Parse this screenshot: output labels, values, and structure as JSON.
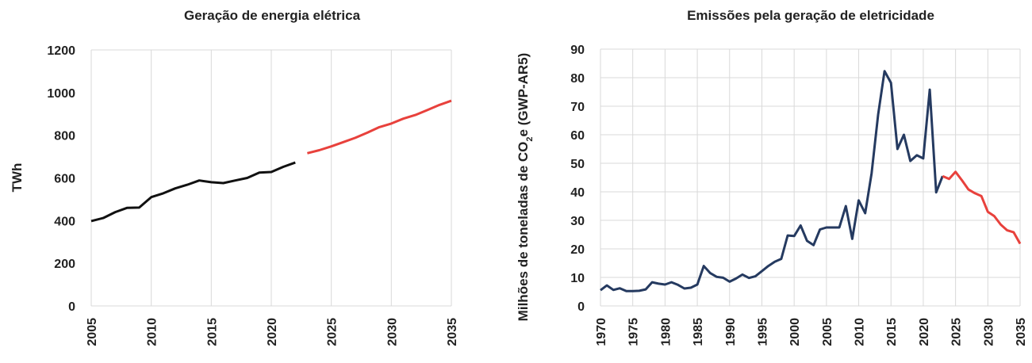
{
  "chart_data": [
    {
      "type": "line",
      "title": "Geração de energia elétrica",
      "ylabel": "TWh",
      "xlabel": "",
      "xlim": [
        2005,
        2035
      ],
      "ylim": [
        0,
        1200
      ],
      "xticks": [
        2005,
        2010,
        2015,
        2020,
        2025,
        2030,
        2035
      ],
      "yticks": [
        0,
        200,
        400,
        600,
        800,
        1000,
        1200
      ],
      "grid": "vertical",
      "colors": {
        "historical": "#111111",
        "projection": "#e8413c"
      },
      "series": [
        {
          "x": [
            2005,
            2006,
            2007,
            2008,
            2009,
            2010,
            2011,
            2012,
            2013,
            2014,
            2015,
            2016,
            2017,
            2018,
            2019,
            2020,
            2021,
            2022
          ],
          "y": [
            398,
            412,
            440,
            460,
            461,
            510,
            528,
            551,
            568,
            588,
            580,
            576,
            588,
            600,
            625,
            628,
            652,
            672
          ],
          "color": "#111111"
        },
        {
          "x": [
            2023,
            2024,
            2025,
            2026,
            2027,
            2028,
            2029,
            2030,
            2031,
            2032,
            2033,
            2034,
            2035
          ],
          "y": [
            716,
            730,
            748,
            768,
            788,
            812,
            838,
            855,
            878,
            895,
            918,
            942,
            962
          ],
          "color": "#e8413c"
        }
      ]
    },
    {
      "type": "line",
      "title": "Emissões pela geração de eletricidade",
      "ylabel": "Milhões de toneladas de CO2e (GWP-AR5)",
      "ylabel_parts": [
        "Milhões de toneladas de CO",
        "2",
        "e (GWP-AR5)"
      ],
      "xlabel": "",
      "xlim": [
        1970,
        2035
      ],
      "ylim": [
        0,
        90
      ],
      "xticks": [
        1970,
        1975,
        1980,
        1985,
        1990,
        1995,
        2000,
        2005,
        2010,
        2015,
        2020,
        2025,
        2030,
        2035
      ],
      "yticks": [
        0,
        10,
        20,
        30,
        40,
        50,
        60,
        70,
        80,
        90
      ],
      "grid": "both",
      "colors": {
        "historical": "#253a60",
        "projection": "#e8413c"
      },
      "series": [
        {
          "x": [
            1970,
            1971,
            1972,
            1973,
            1974,
            1975,
            1976,
            1977,
            1978,
            1979,
            1980,
            1981,
            1982,
            1983,
            1984,
            1985,
            1986,
            1987,
            1988,
            1989,
            1990,
            1991,
            1992,
            1993,
            1994,
            1995,
            1996,
            1997,
            1998,
            1999,
            2000,
            2001,
            2002,
            2003,
            2004,
            2005,
            2006,
            2007,
            2008,
            2009,
            2010,
            2011,
            2012,
            2013,
            2014,
            2015,
            2016,
            2017,
            2018,
            2019,
            2020,
            2021,
            2022,
            2023
          ],
          "y": [
            5.5,
            7.2,
            5.6,
            6.2,
            5.2,
            5.2,
            5.3,
            5.8,
            8.3,
            7.8,
            7.5,
            8.3,
            7.4,
            6.1,
            6.4,
            7.5,
            14,
            11.5,
            10.2,
            9.9,
            8.5,
            9.6,
            11,
            9.8,
            10.4,
            12.2,
            14,
            15.5,
            16.5,
            24.7,
            24.5,
            28.2,
            22.8,
            21.3,
            26.8,
            27.5,
            27.5,
            27.5,
            35,
            23.5,
            37,
            32.5,
            46.5,
            67,
            82.3,
            78.2,
            55,
            60,
            50.8,
            52.8,
            51.7,
            75.8,
            39.8,
            45.5
          ],
          "color": "#253a60"
        },
        {
          "x": [
            2023,
            2024,
            2025,
            2026,
            2027,
            2028,
            2029,
            2030,
            2031,
            2032,
            2033,
            2034,
            2035
          ],
          "y": [
            45.5,
            44.5,
            47,
            44,
            40.8,
            39.5,
            38.5,
            33,
            31.5,
            28.5,
            26.5,
            25.8,
            21.8
          ],
          "color": "#e8413c"
        }
      ]
    }
  ]
}
